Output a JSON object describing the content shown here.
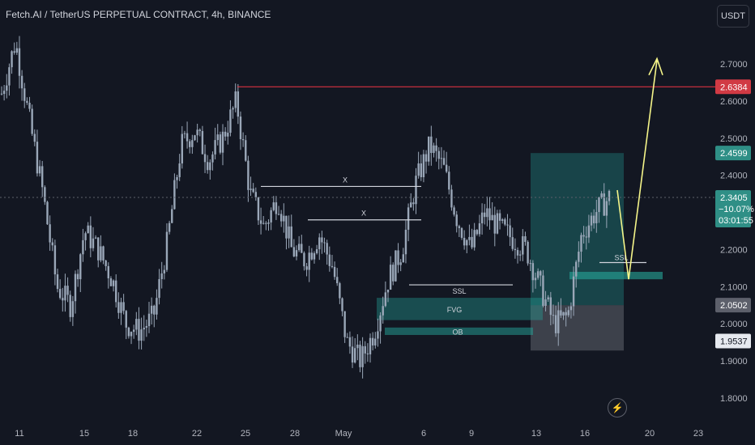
{
  "header": {
    "title": "Fetch.AI / TetherUS PERPETUAL CONTRACT, 4h, BINANCE",
    "currency_button": "USDT"
  },
  "colors": {
    "background": "#131722",
    "candle_body": "#9aa7b8",
    "resistance_line": "#f23645",
    "projection_arrow": "#f5f589",
    "zone_fill": "#26a69a",
    "dark_zone": "#787b86",
    "grid_text": "#b2b5be"
  },
  "chart_data": {
    "type": "line",
    "series_kind": "candlestick",
    "y_axis": {
      "ticks": [
        "1.8000",
        "1.9000",
        "2.0000",
        "2.1000",
        "2.2000",
        "2.3000",
        "2.4000",
        "2.5000",
        "2.6000",
        "2.7000"
      ],
      "ylim": [
        1.75,
        2.84
      ]
    },
    "x_axis": {
      "ticks": [
        "11",
        "15",
        "18",
        "22",
        "25",
        "28",
        "May",
        "6",
        "9",
        "13",
        "16",
        "20",
        "23"
      ]
    },
    "price_labels": [
      {
        "value": "2.6384",
        "kind": "resistance",
        "color": "#f23645"
      },
      {
        "value": "2.4599",
        "kind": "zone-top",
        "color": "#26a69a"
      },
      {
        "value": "2.3405",
        "kind": "last-price",
        "color": "#26a69a"
      },
      {
        "value": "−10.07%",
        "kind": "change",
        "color": "#26a69a"
      },
      {
        "value": "03:01:55",
        "kind": "countdown",
        "color": "#26a69a"
      },
      {
        "value": "2.0502",
        "kind": "entry",
        "color": "#787b86"
      },
      {
        "value": "1.9537",
        "kind": "stop",
        "color": "#e6e9ef"
      }
    ],
    "annotations": [
      {
        "label": "X",
        "kind": "equal-level"
      },
      {
        "label": "X",
        "kind": "equal-level"
      },
      {
        "label": "SSL",
        "kind": "sell-side-liquidity"
      },
      {
        "label": "SSL",
        "kind": "sell-side-liquidity"
      },
      {
        "label": "FVG",
        "kind": "fair-value-gap"
      },
      {
        "label": "OB",
        "kind": "order-block"
      }
    ],
    "levels": {
      "resistance": 2.6384,
      "target_zone_top": 2.4599,
      "entry": 2.0502,
      "stop": 1.9537,
      "last": 2.3405,
      "x_upper": 2.37,
      "x_lower": 2.28,
      "ssl_left": 2.105,
      "ssl_right": 2.165,
      "fvg_top": 2.07,
      "fvg_bottom": 2.01,
      "ob_top": 1.99,
      "ob_bottom": 1.97,
      "right_zone_top": 2.14,
      "right_zone_bottom": 2.12,
      "projection_low": 2.12,
      "projection_high": 2.71
    },
    "close_path": [
      [
        "11",
        2.62
      ],
      [
        "12",
        2.76
      ],
      [
        "13",
        2.55
      ],
      [
        "14",
        2.35
      ],
      [
        "14b",
        2.1
      ],
      [
        "15",
        2.05
      ],
      [
        "15b",
        2.25
      ],
      [
        "16",
        2.2
      ],
      [
        "17",
        2.12
      ],
      [
        "17b",
        2.0
      ],
      [
        "18",
        1.98
      ],
      [
        "19",
        2.02
      ],
      [
        "20",
        2.22
      ],
      [
        "21",
        2.48
      ],
      [
        "21b",
        2.52
      ],
      [
        "22",
        2.44
      ],
      [
        "23",
        2.5
      ],
      [
        "24",
        2.6
      ],
      [
        "24b",
        2.35
      ],
      [
        "25",
        2.26
      ],
      [
        "26",
        2.34
      ],
      [
        "27",
        2.2
      ],
      [
        "28",
        2.17
      ],
      [
        "29",
        2.24
      ],
      [
        "30",
        2.15
      ],
      [
        "May",
        1.95
      ],
      [
        "2",
        1.9
      ],
      [
        "3",
        1.98
      ],
      [
        "4",
        2.12
      ],
      [
        "5",
        2.2
      ],
      [
        "6",
        2.38
      ],
      [
        "6b",
        2.48
      ],
      [
        "7",
        2.42
      ],
      [
        "8",
        2.28
      ],
      [
        "9",
        2.2
      ],
      [
        "10",
        2.3
      ],
      [
        "11",
        2.26
      ],
      [
        "12",
        2.23
      ],
      [
        "13",
        2.2
      ],
      [
        "13b",
        2.1
      ],
      [
        "14",
        2.0
      ],
      [
        "15",
        2.02
      ],
      [
        "15b",
        2.24
      ],
      [
        "16",
        2.3
      ],
      [
        "16b",
        2.34
      ]
    ]
  }
}
